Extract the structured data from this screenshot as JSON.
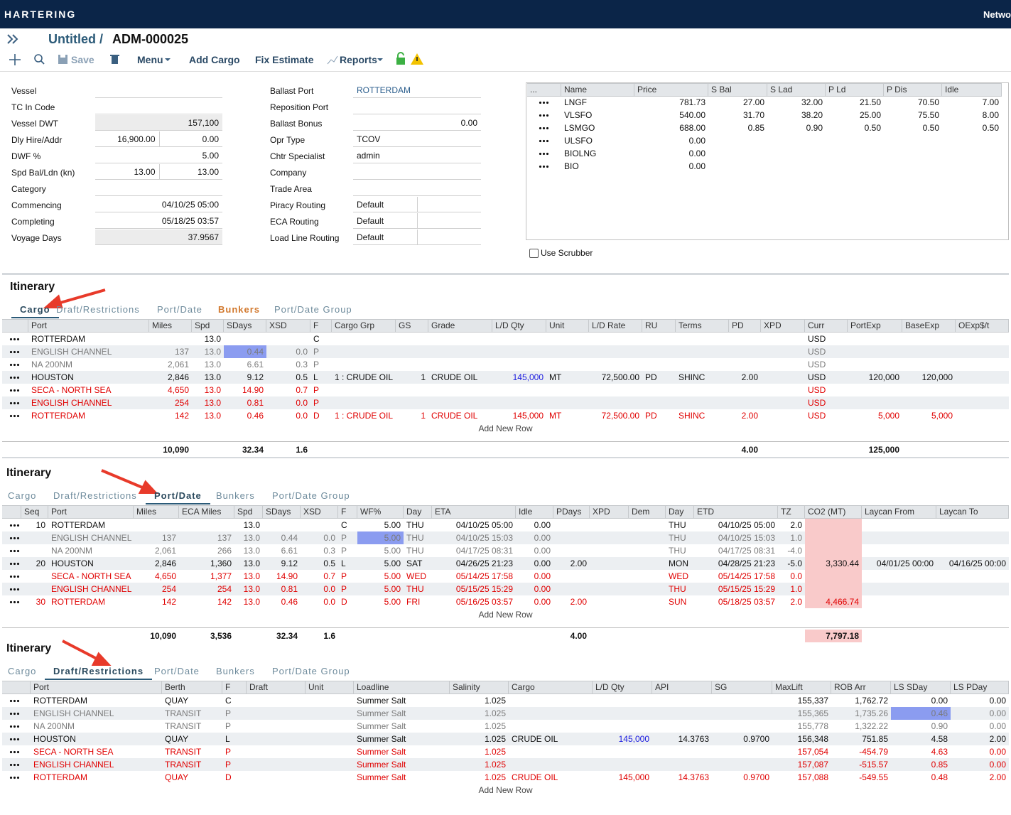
{
  "header": {
    "brand": "HARTERING",
    "right_text": "Netwo"
  },
  "title": {
    "prefix": "Untitled /",
    "code": "ADM-000025"
  },
  "toolbar": [
    "Save",
    "Menu",
    "Add Cargo",
    "Fix Estimate",
    "Reports"
  ],
  "form_left": [
    {
      "label": "Vessel",
      "values": [
        null
      ]
    },
    {
      "label": "TC In Code",
      "values": [
        null
      ]
    },
    {
      "label": "Vessel DWT",
      "values": [
        "157,100"
      ],
      "shaded": true
    },
    {
      "label": "Dly Hire/Addr",
      "values": [
        "16,900.00",
        "0.00"
      ]
    },
    {
      "label": "DWF %",
      "values": [
        "5.00"
      ]
    },
    {
      "label": "Spd Bal/Ldn (kn)",
      "values": [
        "13.00",
        "13.00"
      ]
    },
    {
      "label": "Category",
      "values": [
        null
      ]
    },
    {
      "label": "Commencing",
      "values": [
        "04/10/25 05:00"
      ]
    },
    {
      "label": "Completing",
      "values": [
        "05/18/25 03:57"
      ]
    },
    {
      "label": "Voyage Days",
      "values": [
        "37.9567"
      ],
      "shaded": true
    }
  ],
  "form_mid": [
    {
      "label": "Ballast Port",
      "values": [
        "ROTTERDAM"
      ],
      "color": "#2a5d8c"
    },
    {
      "label": "Reposition Port",
      "values": [
        null
      ]
    },
    {
      "label": "Ballast Bonus",
      "values": [
        "0.00"
      ],
      "align": "right"
    },
    {
      "label": "Opr Type",
      "values": [
        "TCOV"
      ]
    },
    {
      "label": "Chtr Specialist",
      "values": [
        "admin"
      ]
    },
    {
      "label": "Company",
      "values": [
        null
      ]
    },
    {
      "label": "Trade Area",
      "values": [
        null
      ]
    },
    {
      "label": "Piracy Routing",
      "values": [
        "Default",
        null
      ]
    },
    {
      "label": "ECA Routing",
      "values": [
        "Default",
        null
      ]
    },
    {
      "label": "Load Line Routing",
      "values": [
        "Default",
        null
      ]
    }
  ],
  "bunkers": {
    "columns": [
      "...",
      "Name",
      "Price",
      "S Bal",
      "S Lad",
      "P Ld",
      "P Dis",
      "Idle"
    ],
    "rows": [
      [
        "LNGF",
        "781.73",
        "27.00",
        "32.00",
        "21.50",
        "70.50",
        "7.00"
      ],
      [
        "VLSFO",
        "540.00",
        "31.70",
        "38.20",
        "25.00",
        "75.50",
        "8.00"
      ],
      [
        "LSMGO",
        "688.00",
        "0.85",
        "0.90",
        "0.50",
        "0.50",
        "0.50"
      ],
      [
        "ULSFO",
        "0.00",
        null,
        null,
        null,
        null,
        null
      ],
      [
        "BIOLNG",
        "0.00",
        null,
        null,
        null,
        null,
        null
      ],
      [
        "BIO",
        "0.00",
        null,
        null,
        null,
        null,
        null
      ]
    ]
  },
  "scrubber_label": "Use Scrubber",
  "itineraries": [
    {
      "title": "Itinerary",
      "tabs": [
        "Cargo",
        "Draft/Restrictions",
        "Port/Date",
        "Bunkers",
        "Port/Date Group"
      ],
      "active_tab": 0,
      "accent_tab": 3,
      "columns": [
        "Port",
        "Miles",
        "Spd",
        "SDays",
        "XSD",
        "F",
        "Cargo Grp",
        "GS",
        "Grade",
        "L/D Qty",
        "Unit",
        "L/D Rate",
        "RU",
        "Terms",
        "PD",
        "XPD",
        "Curr",
        "PortExp",
        "BaseExp",
        "OExp$/t"
      ],
      "rows": [
        {
          "style": "black",
          "cells": [
            "ROTTERDAM",
            null,
            "13.0",
            null,
            null,
            "C",
            null,
            null,
            null,
            null,
            null,
            null,
            null,
            null,
            null,
            null,
            "USD",
            null,
            null,
            null
          ]
        },
        {
          "style": "gray",
          "cells": [
            "ENGLISH CHANNEL",
            "137",
            "13.0",
            {
              "text": "0.44",
              "highlight": true
            },
            "0.0",
            "P",
            null,
            null,
            null,
            null,
            null,
            null,
            null,
            null,
            null,
            null,
            "USD",
            null,
            null,
            null
          ]
        },
        {
          "style": "gray",
          "cells": [
            "NA 200NM",
            "2,061",
            "13.0",
            "6.61",
            "0.3",
            "P",
            null,
            null,
            null,
            null,
            null,
            null,
            null,
            null,
            null,
            null,
            "USD",
            null,
            null,
            null
          ]
        },
        {
          "style": "black",
          "cells": [
            "HOUSTON",
            "2,846",
            "13.0",
            "9.12",
            "0.5",
            "L",
            "1 : CRUDE OIL",
            "1",
            "CRUDE OIL",
            {
              "text": "145,000",
              "color": "blue"
            },
            "MT",
            "72,500.00",
            "PD",
            "SHINC",
            "2.00",
            null,
            "USD",
            "120,000",
            "120,000",
            null
          ]
        },
        {
          "style": "red",
          "cells": [
            "SECA - NORTH SEA",
            "4,650",
            "13.0",
            "14.90",
            "0.7",
            "P",
            null,
            null,
            null,
            null,
            null,
            null,
            null,
            null,
            null,
            null,
            "USD",
            null,
            null,
            null
          ]
        },
        {
          "style": "red",
          "cells": [
            "ENGLISH CHANNEL",
            "254",
            "13.0",
            "0.81",
            "0.0",
            "P",
            null,
            null,
            null,
            null,
            null,
            null,
            null,
            null,
            null,
            null,
            "USD",
            null,
            null,
            null
          ]
        },
        {
          "style": "red",
          "cells": [
            "ROTTERDAM",
            "142",
            "13.0",
            "0.46",
            "0.0",
            "D",
            "1 : CRUDE OIL",
            "1",
            "CRUDE OIL",
            "145,000",
            "MT",
            "72,500.00",
            "PD",
            "SHINC",
            "2.00",
            null,
            "USD",
            "5,000",
            "5,000",
            null
          ]
        }
      ],
      "add_row": "Add New Row",
      "totals": [
        null,
        "10,090",
        null,
        "32.34",
        "1.6",
        null,
        null,
        null,
        null,
        null,
        null,
        null,
        null,
        null,
        "4.00",
        null,
        null,
        "125,000",
        null,
        null
      ]
    },
    {
      "title": "Itinerary",
      "tabs": [
        "Cargo",
        "Draft/Restrictions",
        "Port/Date",
        "Bunkers",
        "Port/Date Group"
      ],
      "active_tab": 2,
      "columns": [
        "Seq",
        "Port",
        "Miles",
        "ECA Miles",
        "Spd",
        "SDays",
        "XSD",
        "F",
        "WF%",
        "Day",
        "ETA",
        "Idle",
        "PDays",
        "XPD",
        "Dem",
        "Day",
        "ETD",
        "TZ",
        "CO2 (MT)",
        "Laycan From",
        "Laycan To"
      ],
      "shaded_column": 18,
      "rows": [
        {
          "style": "black",
          "cells": [
            "10",
            "ROTTERDAM",
            null,
            null,
            "13.0",
            null,
            null,
            "C",
            "5.00",
            "THU",
            "04/10/25 05:00",
            "0.00",
            null,
            null,
            null,
            "THU",
            "04/10/25 05:00",
            "2.0",
            null,
            null,
            null
          ]
        },
        {
          "style": "gray",
          "cells": [
            null,
            "ENGLISH CHANNEL",
            "137",
            "137",
            "13.0",
            "0.44",
            "0.0",
            "P",
            {
              "text": "5.00",
              "highlight": true
            },
            "THU",
            "04/10/25 15:03",
            "0.00",
            null,
            null,
            null,
            "THU",
            "04/10/25 15:03",
            "1.0",
            null,
            null,
            null
          ]
        },
        {
          "style": "gray",
          "cells": [
            null,
            "NA 200NM",
            "2,061",
            "266",
            "13.0",
            "6.61",
            "0.3",
            "P",
            "5.00",
            "THU",
            "04/17/25 08:31",
            "0.00",
            null,
            null,
            null,
            "THU",
            "04/17/25 08:31",
            "-4.0",
            null,
            null,
            null
          ]
        },
        {
          "style": "black",
          "cells": [
            "20",
            "HOUSTON",
            "2,846",
            "1,360",
            "13.0",
            "9.12",
            "0.5",
            "L",
            "5.00",
            "SAT",
            "04/26/25 21:23",
            "0.00",
            "2.00",
            null,
            null,
            "MON",
            "04/28/25 21:23",
            "-5.0",
            "3,330.44",
            "04/01/25 00:00",
            "04/16/25 00:00"
          ]
        },
        {
          "style": "red",
          "cells": [
            null,
            "SECA - NORTH SEA",
            "4,650",
            "1,377",
            "13.0",
            "14.90",
            "0.7",
            "P",
            "5.00",
            "WED",
            "05/14/25 17:58",
            "0.00",
            null,
            null,
            null,
            "WED",
            "05/14/25 17:58",
            "0.0",
            null,
            null,
            null
          ]
        },
        {
          "style": "red",
          "cells": [
            null,
            "ENGLISH CHANNEL",
            "254",
            "254",
            "13.0",
            "0.81",
            "0.0",
            "P",
            "5.00",
            "THU",
            "05/15/25 15:29",
            "0.00",
            null,
            null,
            null,
            "THU",
            "05/15/25 15:29",
            "1.0",
            null,
            null,
            null
          ]
        },
        {
          "style": "red",
          "cells": [
            "30",
            "ROTTERDAM",
            "142",
            "142",
            "13.0",
            "0.46",
            "0.0",
            "D",
            "5.00",
            "FRI",
            "05/16/25 03:57",
            "0.00",
            "2.00",
            null,
            null,
            "SUN",
            "05/18/25 03:57",
            "2.0",
            "4,466.74",
            null,
            null
          ]
        }
      ],
      "add_row": "Add New Row",
      "totals": [
        null,
        null,
        "10,090",
        "3,536",
        null,
        "32.34",
        "1.6",
        null,
        null,
        null,
        null,
        null,
        "4.00",
        null,
        null,
        null,
        null,
        null,
        "7,797.18",
        null,
        null
      ]
    },
    {
      "title": "Itinerary",
      "tabs": [
        "Cargo",
        "Draft/Restrictions",
        "Port/Date",
        "Bunkers",
        "Port/Date Group"
      ],
      "active_tab": 1,
      "columns": [
        "Port",
        "Berth",
        "F",
        "Draft",
        "Unit",
        "Loadline",
        "Salinity",
        "Cargo",
        "L/D Qty",
        "API",
        "SG",
        "MaxLift",
        "ROB Arr",
        "LS SDay",
        "LS PDay"
      ],
      "rows": [
        {
          "style": "black",
          "cells": [
            "ROTTERDAM",
            "QUAY",
            "C",
            null,
            null,
            "Summer Salt",
            "1.025",
            null,
            null,
            null,
            null,
            "155,337",
            "1,762.72",
            "0.00",
            "0.00"
          ]
        },
        {
          "style": "gray",
          "cells": [
            "ENGLISH CHANNEL",
            "TRANSIT",
            "P",
            null,
            null,
            "Summer Salt",
            "1.025",
            null,
            null,
            null,
            null,
            "155,365",
            "1,735.26",
            {
              "text": "0.46",
              "highlight": true
            },
            "0.00"
          ]
        },
        {
          "style": "gray",
          "cells": [
            "NA 200NM",
            "TRANSIT",
            "P",
            null,
            null,
            "Summer Salt",
            "1.025",
            null,
            null,
            null,
            null,
            "155,778",
            "1,322.22",
            "0.90",
            "0.00"
          ]
        },
        {
          "style": "black",
          "cells": [
            "HOUSTON",
            "QUAY",
            "L",
            null,
            null,
            "Summer Salt",
            "1.025",
            "CRUDE OIL",
            {
              "text": "145,000",
              "color": "blue"
            },
            "14.3763",
            "0.9700",
            "156,348",
            "751.85",
            "4.58",
            "2.00"
          ]
        },
        {
          "style": "red",
          "cells": [
            "SECA - NORTH SEA",
            "TRANSIT",
            "P",
            null,
            null,
            "Summer Salt",
            "1.025",
            null,
            null,
            null,
            null,
            "157,054",
            "-454.79",
            "4.63",
            "0.00"
          ]
        },
        {
          "style": "red",
          "cells": [
            "ENGLISH CHANNEL",
            "TRANSIT",
            "P",
            null,
            null,
            "Summer Salt",
            "1.025",
            null,
            null,
            null,
            null,
            "157,087",
            "-515.57",
            "0.85",
            "0.00"
          ]
        },
        {
          "style": "red",
          "cells": [
            "ROTTERDAM",
            "QUAY",
            "D",
            null,
            null,
            "Summer Salt",
            "1.025",
            "CRUDE OIL",
            "145,000",
            "14.3763",
            "0.9700",
            "157,088",
            "-549.55",
            "0.48",
            "2.00"
          ]
        }
      ],
      "add_row": "Add New Row"
    }
  ]
}
